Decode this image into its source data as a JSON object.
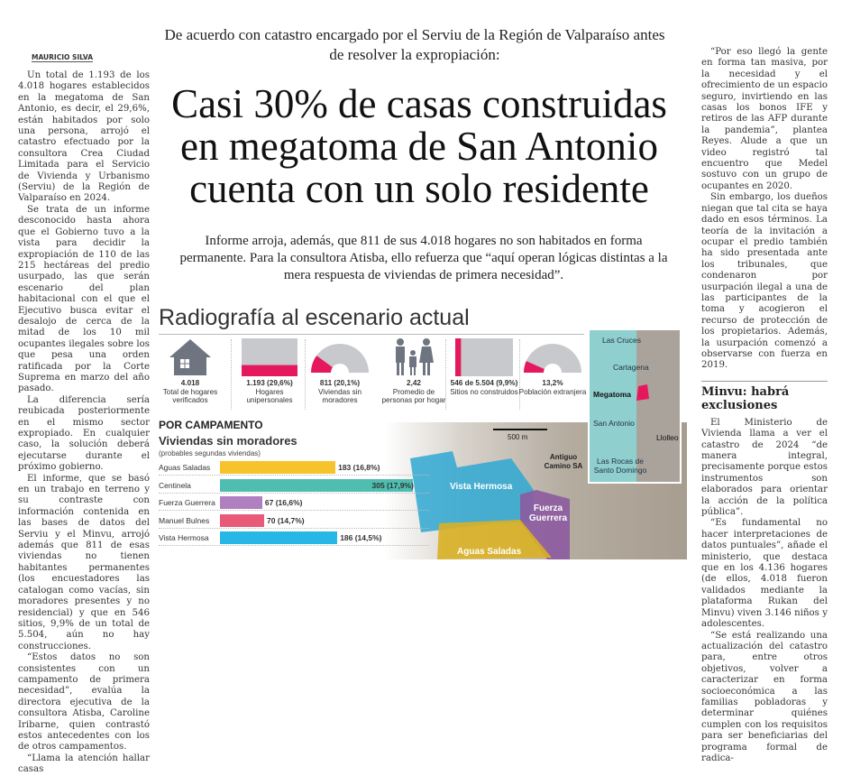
{
  "byline": "MAURICIO SILVA",
  "left_column": [
    "Un total de 1.193 de los 4.018 hogares establecidos en la megatoma de San Antonio, es decir, el 29,6%, están habitados por solo una persona, arrojó el catastro efectuado por la consultora Crea Ciudad Limitada para el Servicio de Vivienda y Urbanismo (Serviu) de la Región de Valparaíso en 2024.",
    "Se trata de un informe desconocido hasta ahora que el Gobierno tuvo a la vista para decidir la expropiación de 110 de las 215 hectáreas del predio usurpado, las que serán escenario del plan habitacional con el que el Ejecutivo busca evitar el desalojo de cerca de la mitad de los 10 mil ocupantes ilegales sobre los que pesa una orden ratificada por la Corte Suprema en marzo del año pasado.",
    "La diferencia sería reubicada posteriormente en el mismo sector expropiado. En cualquier caso, la solución deberá ejecutarse durante el próximo gobierno.",
    "El informe, que se basó en un trabajo en terreno y su contraste con información contenida en las bases de datos del Serviu y el Minvu, arrojó además que 811 de esas viviendas no tienen habitantes permanentes (los encuestadores las catalogan como vacías, sin moradores presentes y no residencial) y que en 546 sitios, 9,9% de un total de 5.504, aún no hay construcciones.",
    "“Estos datos no son consistentes con un campamento de primera necesidad”, evalúa la directora ejecutiva de la consultora Atisba, Caroline Iribarne, quien contrastó estos antecedentes con los de otros campamentos.",
    "“Llama la atención hallar casas"
  ],
  "deck": "De acuerdo con catastro encargado por el Serviu de la Región de Valparaíso antes de resolver la expropiación:",
  "title": "Casi 30% de casas construidas en megatoma de San Antonio cuenta con un solo residente",
  "lede": "Informe arroja, además, que 811 de sus 4.018 hogares no son habitados en forma permanente. Para la consultora Atisba, ello refuerza que “aquí operan lógicas distintas a la mera respuesta de viviendas de primera necesidad”.",
  "right_column": {
    "paras_a": [
      "“Por eso llegó la gente en forma tan masiva, por la necesidad y el ofrecimiento de un espacio seguro, invirtiendo en las casas los bonos IFE y retiros de las AFP durante la pandemia”, plantea Reyes. Alude a que un video registró tal encuentro que Medel sostuvo con un grupo de ocupantes en 2020.",
      "Sin embargo, los dueños niegan que tal cita se haya dado en esos términos. La teoría de la invitación a ocupar el predio también ha sido presentada ante los tribunales, que condenaron por usurpación ilegal a una de las participantes de la toma y acogieron el recurso de protección de los propietarios. Además, la usurpación comenzó a observarse con fuerza en 2019."
    ],
    "subhead": "Minvu: habrá exclusiones",
    "paras_b": [
      "El Ministerio de Vivienda llama a ver el catastro de 2024 “de manera integral, precisamente porque estos instrumentos son elaborados para orientar la acción de la política pública”.",
      "“Es fundamental no hacer interpretaciones de datos puntuales”, añade el ministerio, que destaca que en los 4.136 hogares (de ellos, 4.018 fueron validados mediante la plataforma Rukan del Minvu) viven 3.146 niños y adolescentes.",
      "“Se está realizando una actualización del catastro para, entre otros objetivos, volver a caracterizar en forma socioeconómica a las familias pobladoras y determinar quiénes cumplen con los requisitos para ser beneficiarias del programa formal de radica-"
    ]
  },
  "infographic": {
    "title": "Radiografía al escenario actual",
    "stats": [
      {
        "value": "4.018",
        "label": "Total de hogares verificados",
        "icon": "house-icon"
      },
      {
        "value": "1.193 (29,6%)",
        "label": "Hogares unipersonales",
        "icon": "fill-bar",
        "fraction": 0.296
      },
      {
        "value": "811 (20,1%)",
        "label": "Viviendas sin moradores",
        "icon": "half-gauge",
        "fraction": 0.201
      },
      {
        "value": "2,42",
        "label": "Promedio de personas por hogar",
        "icon": "family-icon"
      },
      {
        "value": "546 de 5.504 (9,9%)",
        "label": "Sitios no construidos",
        "icon": "fill-bar",
        "fraction": 0.099
      },
      {
        "value": "13,2%",
        "label": "Población extranjera",
        "icon": "half-gauge",
        "fraction": 0.132
      }
    ],
    "section": "POR CAMPAMENTO",
    "chart_title": "Viviendas sin moradores",
    "chart_subtitle": "(probables segundas viviendas)",
    "chart_data": {
      "type": "bar",
      "categories": [
        "Aguas Saladas",
        "Centinela",
        "Fuerza Guerrera",
        "Manuel Bulnes",
        "Vista Hermosa"
      ],
      "values": [
        183,
        305,
        67,
        70,
        186
      ],
      "labels": [
        "183 (16,8%)",
        "305 (17,9%)",
        "67 (16,6%)",
        "70 (14,7%)",
        "186 (14,5%)"
      ],
      "colors": [
        "#f7c32a",
        "#4fbdb0",
        "#b07fc0",
        "#e85a78",
        "#27b7e6"
      ]
    },
    "map": {
      "scale": "500 m",
      "zones": [
        "Vista Hermosa",
        "Fuerza Guerrera",
        "Aguas Saladas"
      ],
      "road": "Antiguo Camino SA",
      "inset_places": [
        "Las Cruces",
        "Cartagena",
        "Megatoma",
        "San Antonio",
        "Llolleo",
        "Las Rocas de Santo Domingo"
      ]
    },
    "accent": "#e5185d"
  }
}
